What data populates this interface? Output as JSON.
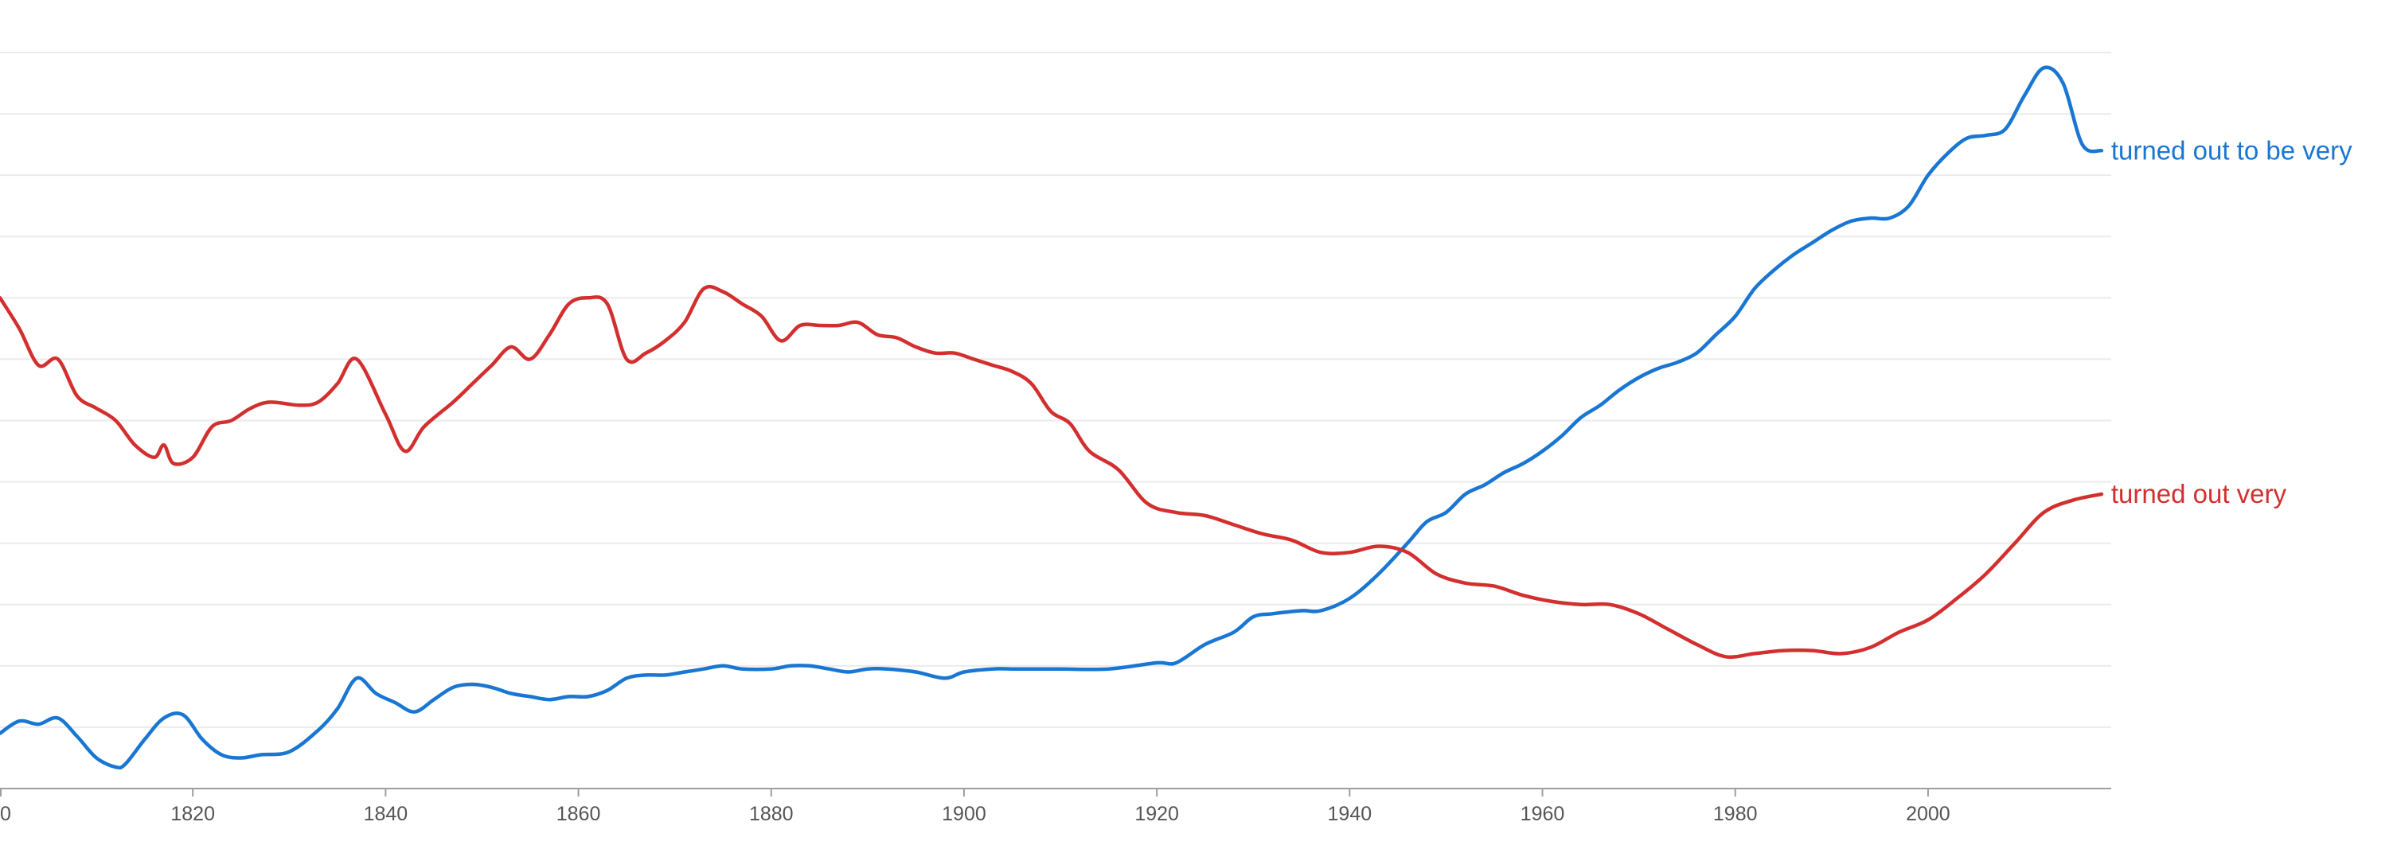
{
  "chart_data": {
    "type": "line",
    "title": "",
    "xlabel": "",
    "ylabel": "",
    "xlim": [
      1800,
      2019
    ],
    "ylim": [
      0,
      12
    ],
    "grid": true,
    "x_ticks": [
      "1820",
      "1840",
      "1860",
      "1880",
      "1900",
      "1920",
      "1940",
      "1960",
      "1980",
      "2000"
    ],
    "x_tick_label_partial": "0",
    "series": [
      {
        "name": "turned out to be very",
        "color": "#1976d2",
        "x": [
          1800,
          1802,
          1804,
          1806,
          1808,
          1810,
          1812,
          1813,
          1815,
          1817,
          1819,
          1821,
          1823,
          1825,
          1827,
          1830,
          1833,
          1835,
          1837,
          1839,
          1841,
          1843,
          1845,
          1847,
          1849,
          1851,
          1853,
          1855,
          1857,
          1859,
          1861,
          1863,
          1865,
          1867,
          1869,
          1871,
          1873,
          1875,
          1877,
          1880,
          1882,
          1884,
          1886,
          1888,
          1890,
          1892,
          1895,
          1898,
          1900,
          1903,
          1905,
          1908,
          1910,
          1915,
          1920,
          1922,
          1925,
          1928,
          1930,
          1932,
          1935,
          1937,
          1940,
          1943,
          1946,
          1948,
          1950,
          1952,
          1954,
          1956,
          1958,
          1960,
          1962,
          1964,
          1966,
          1968,
          1970,
          1972,
          1974,
          1976,
          1978,
          1980,
          1982,
          1984,
          1986,
          1988,
          1990,
          1992,
          1994,
          1996,
          1998,
          2000,
          2002,
          2004,
          2006,
          2008,
          2010,
          2012,
          2014,
          2016,
          2018
        ],
        "values": [
          0.9,
          1.1,
          1.05,
          1.15,
          0.85,
          0.5,
          0.35,
          0.4,
          0.8,
          1.15,
          1.2,
          0.8,
          0.55,
          0.5,
          0.55,
          0.6,
          0.95,
          1.3,
          1.8,
          1.55,
          1.4,
          1.25,
          1.45,
          1.65,
          1.7,
          1.65,
          1.55,
          1.5,
          1.45,
          1.5,
          1.5,
          1.6,
          1.8,
          1.85,
          1.85,
          1.9,
          1.95,
          2.0,
          1.95,
          1.95,
          2.0,
          2.0,
          1.95,
          1.9,
          1.95,
          1.95,
          1.9,
          1.8,
          1.9,
          1.95,
          1.95,
          1.95,
          1.95,
          1.95,
          2.05,
          2.05,
          2.35,
          2.55,
          2.8,
          2.85,
          2.9,
          2.9,
          3.1,
          3.5,
          4.0,
          4.35,
          4.5,
          4.8,
          4.95,
          5.15,
          5.3,
          5.5,
          5.75,
          6.05,
          6.25,
          6.5,
          6.7,
          6.85,
          6.95,
          7.1,
          7.4,
          7.7,
          8.15,
          8.45,
          8.7,
          8.9,
          9.1,
          9.25,
          9.3,
          9.3,
          9.5,
          10.0,
          10.35,
          10.6,
          10.65,
          10.75,
          11.3,
          11.75,
          11.5,
          10.5,
          10.4
        ]
      },
      {
        "name": "turned out very",
        "color": "#d32f2f",
        "x": [
          1800,
          1802,
          1804,
          1806,
          1808,
          1810,
          1812,
          1814,
          1816,
          1817,
          1818,
          1820,
          1822,
          1824,
          1826,
          1828,
          1831,
          1833,
          1835,
          1837,
          1840,
          1842,
          1844,
          1847,
          1849,
          1851,
          1853,
          1855,
          1857,
          1859,
          1861,
          1863,
          1865,
          1867,
          1869,
          1871,
          1873,
          1875,
          1877,
          1879,
          1881,
          1883,
          1885,
          1887,
          1889,
          1891,
          1893,
          1895,
          1897,
          1899,
          1901,
          1903,
          1905,
          1907,
          1909,
          1911,
          1913,
          1916,
          1919,
          1922,
          1925,
          1928,
          1931,
          1934,
          1937,
          1940,
          1943,
          1946,
          1949,
          1952,
          1955,
          1958,
          1961,
          1964,
          1967,
          1970,
          1973,
          1976,
          1979,
          1982,
          1985,
          1988,
          1991,
          1994,
          1997,
          2000,
          2003,
          2006,
          2009,
          2012,
          2015,
          2018
        ],
        "values": [
          8.0,
          7.5,
          6.9,
          7.0,
          6.4,
          6.2,
          6.0,
          5.6,
          5.4,
          5.6,
          5.3,
          5.4,
          5.9,
          6.0,
          6.2,
          6.3,
          6.25,
          6.3,
          6.6,
          7.0,
          6.1,
          5.5,
          5.9,
          6.3,
          6.6,
          6.9,
          7.2,
          7.0,
          7.4,
          7.9,
          8.0,
          7.9,
          7.0,
          7.1,
          7.3,
          7.6,
          8.15,
          8.1,
          7.9,
          7.7,
          7.3,
          7.55,
          7.55,
          7.55,
          7.6,
          7.4,
          7.35,
          7.2,
          7.1,
          7.1,
          7.0,
          6.9,
          6.8,
          6.6,
          6.15,
          5.95,
          5.5,
          5.2,
          4.65,
          4.5,
          4.45,
          4.3,
          4.15,
          4.05,
          3.85,
          3.85,
          3.95,
          3.85,
          3.5,
          3.35,
          3.3,
          3.15,
          3.05,
          3.0,
          3.0,
          2.85,
          2.6,
          2.35,
          2.15,
          2.2,
          2.25,
          2.25,
          2.2,
          2.3,
          2.55,
          2.75,
          3.1,
          3.5,
          4.0,
          4.5,
          4.7,
          4.8
        ]
      }
    ]
  }
}
